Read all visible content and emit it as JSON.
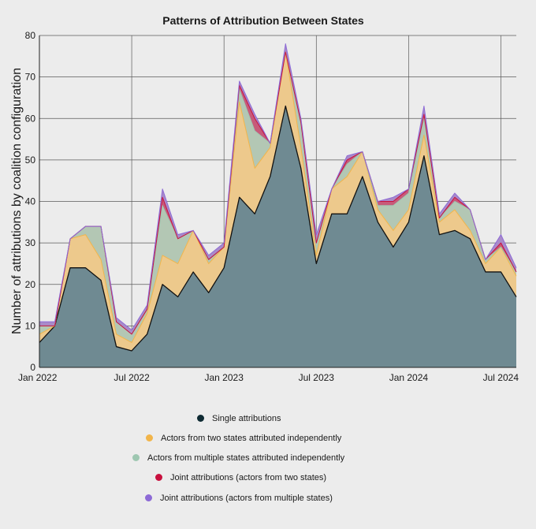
{
  "chart_data": {
    "type": "area",
    "title": "Patterns of Attribution Between States",
    "xlabel": "",
    "ylabel": "Number of attributions by coalition configuration",
    "ylim": [
      0,
      80
    ],
    "y_ticks": [
      "0",
      "10",
      "20",
      "30",
      "40",
      "50",
      "60",
      "70",
      "80"
    ],
    "x_tick_labels": [
      "Jan 2022",
      "Jul 2022",
      "Jan 2023",
      "Jul 2023",
      "Jan 2024",
      "Jul 2024"
    ],
    "x": [
      "2022-01",
      "2022-02",
      "2022-03",
      "2022-04",
      "2022-05",
      "2022-06",
      "2022-07",
      "2022-08",
      "2022-09",
      "2022-10",
      "2022-11",
      "2022-12",
      "2023-01",
      "2023-02",
      "2023-03",
      "2023-04",
      "2023-05",
      "2023-06",
      "2023-07",
      "2023-08",
      "2023-09",
      "2023-10",
      "2023-11",
      "2023-12",
      "2024-01",
      "2024-02",
      "2024-03",
      "2024-04",
      "2024-05",
      "2024-06",
      "2024-07",
      "2024-08"
    ],
    "stacked": true,
    "grid": true,
    "legend_position": "bottom",
    "series": [
      {
        "name": "Single attributions",
        "color": "#6f8a92",
        "legend_color": "#0e2a33",
        "values": [
          6,
          10,
          24,
          24,
          21,
          5,
          4,
          8,
          20,
          17,
          23,
          18,
          24,
          41,
          37,
          46,
          63,
          48,
          25,
          37,
          37,
          46,
          35,
          29,
          35,
          51,
          32,
          33,
          31,
          23,
          23,
          17
        ]
      },
      {
        "name": "Actors from two states attributed independently",
        "color": "#edc98c",
        "legend_color": "#f2b54a",
        "values": [
          2,
          0,
          7,
          8,
          5,
          3,
          2,
          5,
          7,
          8,
          10,
          7,
          5,
          23,
          11,
          7,
          13,
          5,
          2,
          6,
          9,
          6,
          3,
          4,
          3,
          5,
          3,
          5,
          2,
          2,
          6,
          5
        ]
      },
      {
        "name": "Actors from multiple states attributed independently",
        "color": "#b3c7b4",
        "legend_color": "#9ec7b1",
        "values": [
          2,
          0,
          0,
          2,
          8,
          3,
          2,
          1,
          12,
          6,
          0,
          1,
          0,
          3,
          9,
          1,
          0,
          6,
          3,
          0,
          3,
          0,
          1,
          6,
          4,
          4,
          1,
          2,
          5,
          1,
          0,
          1
        ]
      },
      {
        "name": "Joint attributions (actors from two states)",
        "color": "#c75a7a",
        "legend_color": "#c8103e",
        "values": [
          0,
          0,
          0,
          0,
          0,
          0,
          0,
          0,
          2,
          0,
          0,
          0,
          0,
          1,
          3,
          0,
          0,
          0,
          0,
          0,
          1,
          0,
          1,
          1,
          1,
          1,
          0,
          1,
          0,
          0,
          1,
          0
        ]
      },
      {
        "name": "Joint attributions (actors from multiple states)",
        "color": "#a98bc9",
        "legend_color": "#8d6ad6",
        "values": [
          1,
          1,
          0,
          0,
          0,
          1,
          1,
          1,
          2,
          1,
          0,
          1,
          1,
          1,
          1,
          0,
          2,
          1,
          2,
          0,
          1,
          0,
          0,
          1,
          0,
          2,
          1,
          1,
          0,
          0,
          2,
          1
        ]
      }
    ]
  }
}
